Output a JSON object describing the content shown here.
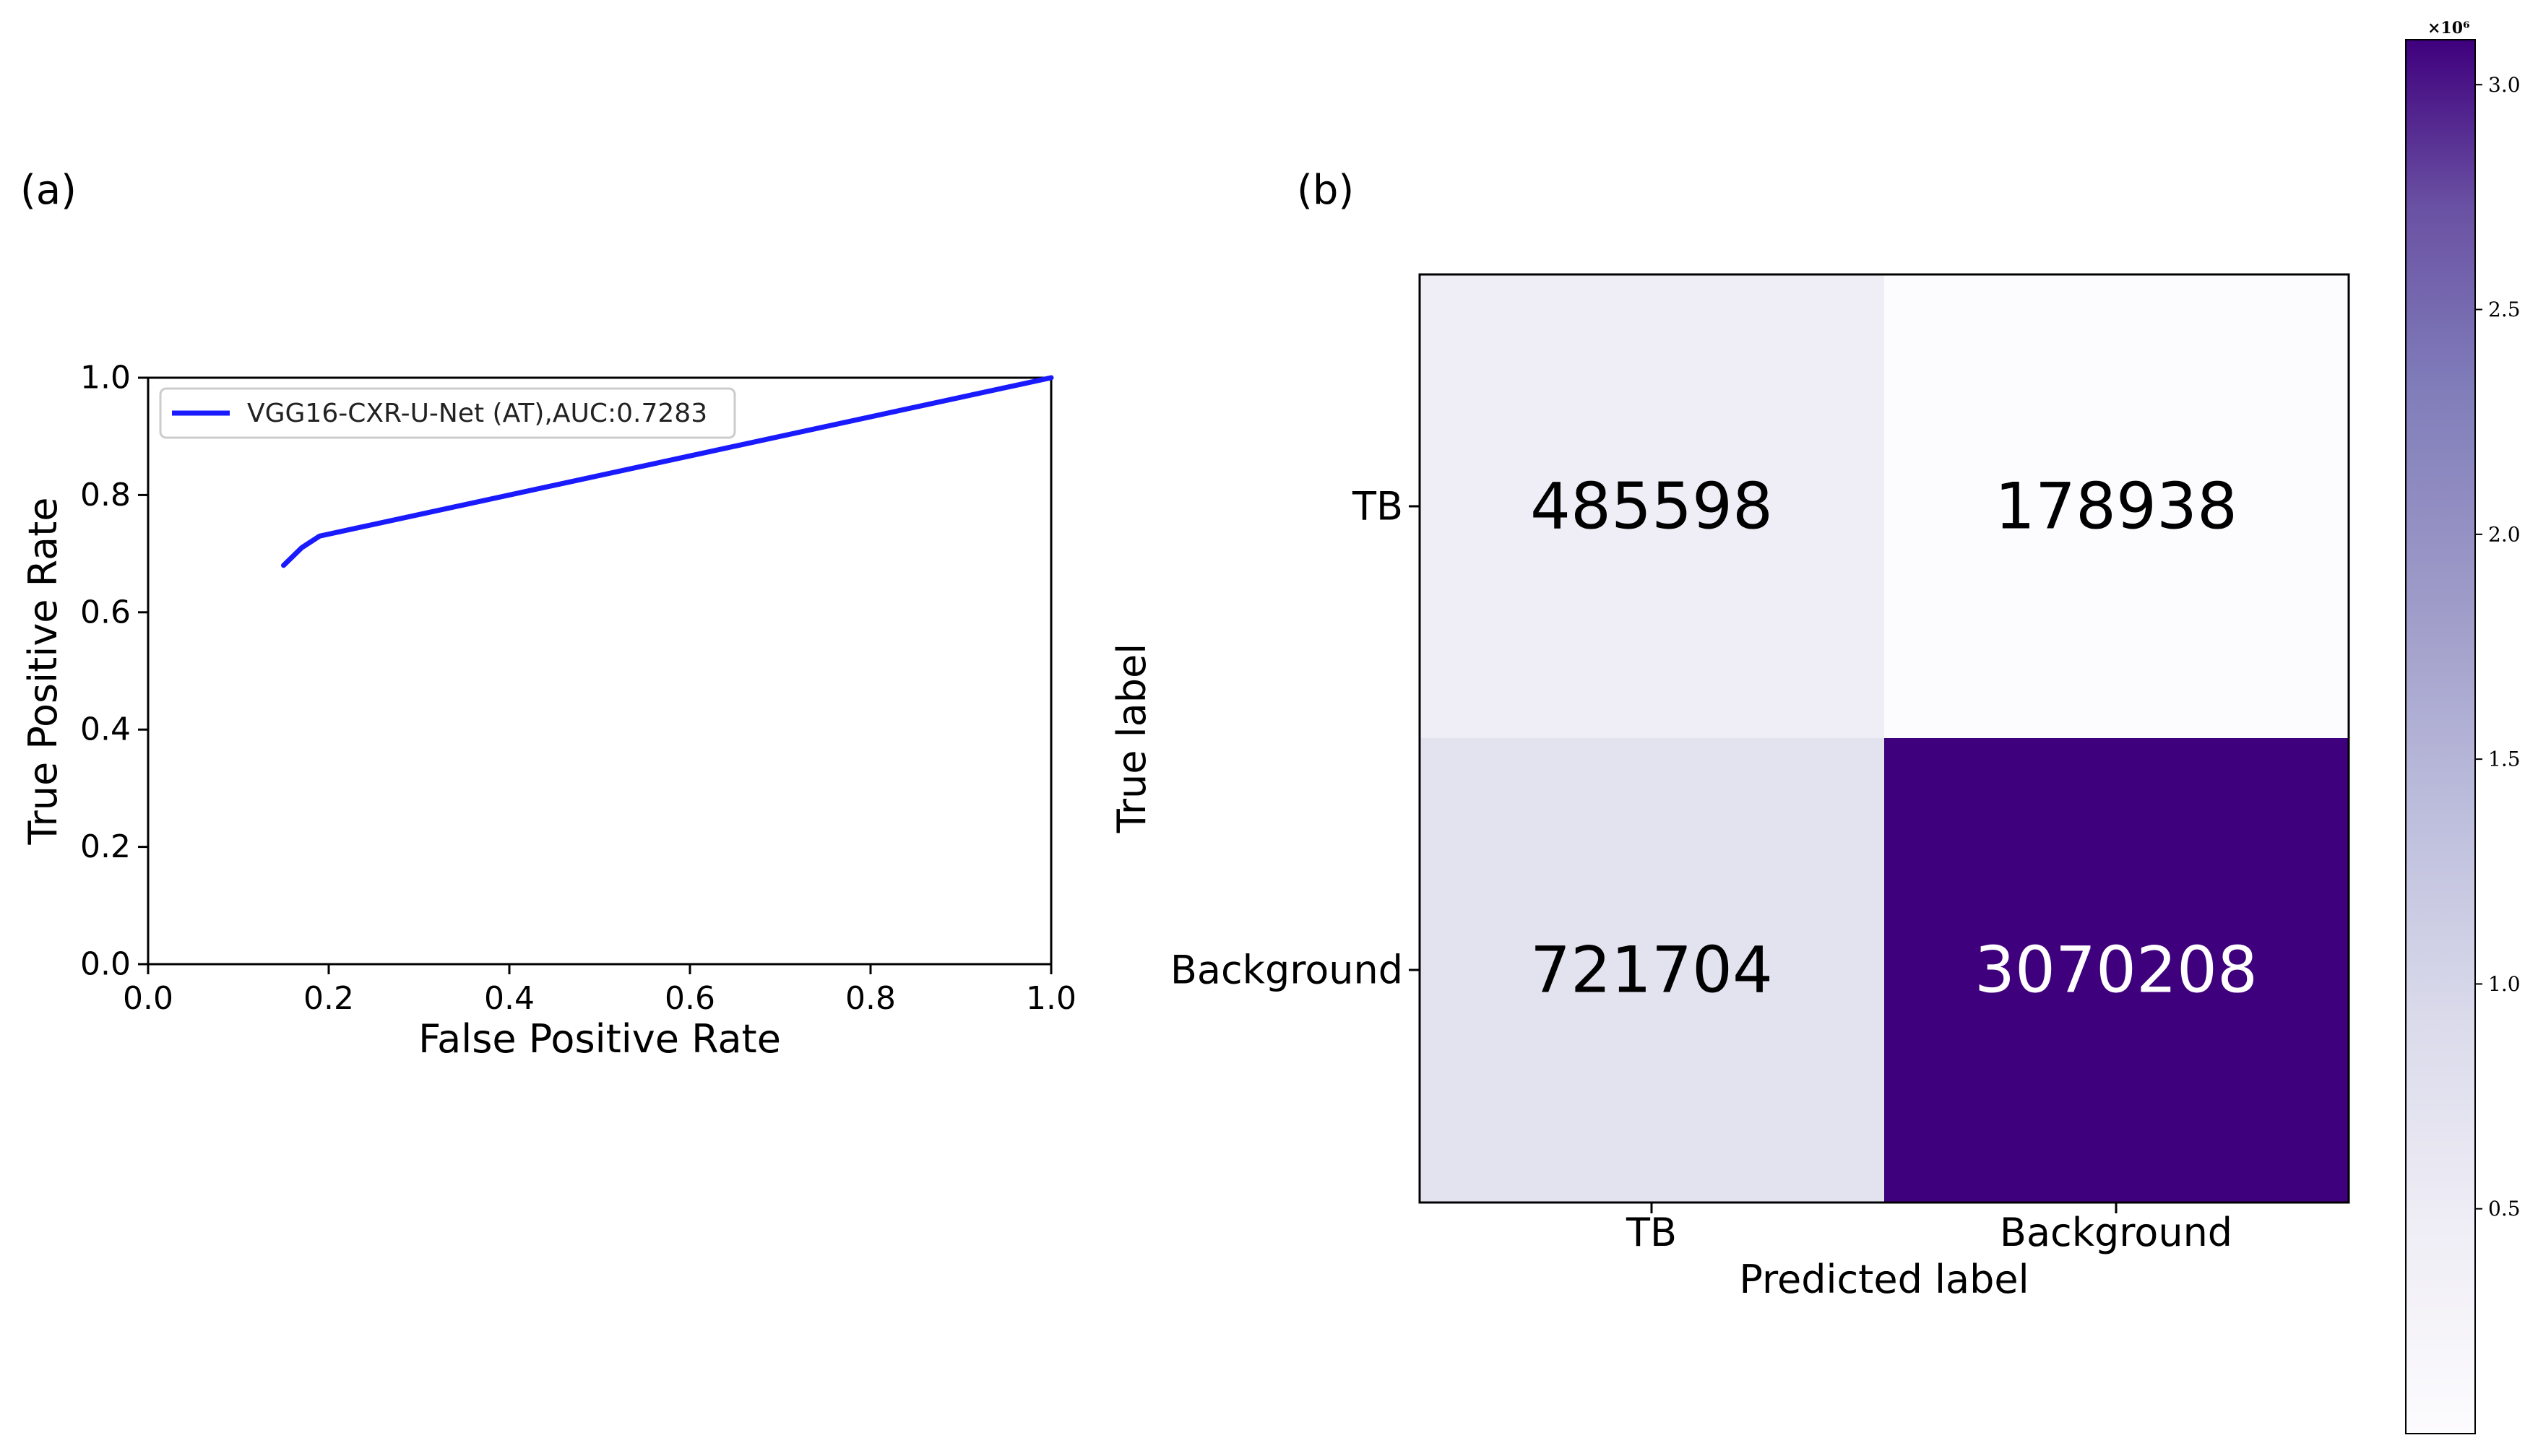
{
  "chart_data": [
    {
      "type": "line",
      "panel_label": "(a)",
      "xlabel": "False Positive Rate",
      "ylabel": "True Positive Rate",
      "xlim": [
        0.0,
        1.0
      ],
      "ylim": [
        0.0,
        1.0
      ],
      "xticks": [
        "0.0",
        "0.2",
        "0.4",
        "0.6",
        "0.8",
        "1.0"
      ],
      "yticks": [
        "0.0",
        "0.2",
        "0.4",
        "0.6",
        "0.8",
        "1.0"
      ],
      "grid": false,
      "legend_position": "top-left",
      "series": [
        {
          "name": "VGG16-CXR-U-Net (AT),AUC:0.7283",
          "color": "#1a1aff",
          "x": [
            0.15,
            0.17,
            0.19,
            1.0
          ],
          "y": [
            0.68,
            0.71,
            0.73,
            1.0
          ]
        }
      ]
    },
    {
      "type": "heatmap",
      "panel_label": "(b)",
      "xlabel": "Predicted label",
      "ylabel": "True label",
      "x_categories": [
        "TB",
        "Background"
      ],
      "y_categories": [
        "TB",
        "Background"
      ],
      "values": [
        [
          485598,
          178938
        ],
        [
          721704,
          3070208
        ]
      ],
      "colormap": "Purples",
      "colorbar": {
        "range": [
          0,
          3100000
        ],
        "ticks": [
          "0.5",
          "1.0",
          "1.5",
          "2.0",
          "2.5",
          "3.0"
        ],
        "tick_values": [
          500000,
          1000000,
          1500000,
          2000000,
          2500000,
          3000000
        ],
        "multiplier_label": "×10⁶"
      },
      "colors": {
        "cell_0_0": "#efedf5",
        "cell_0_1": "#fcfbfd",
        "cell_1_0": "#e3e2ef",
        "cell_1_1": "#3f007d",
        "text_light": "#ffffff",
        "text_dark": "#000000"
      }
    }
  ]
}
